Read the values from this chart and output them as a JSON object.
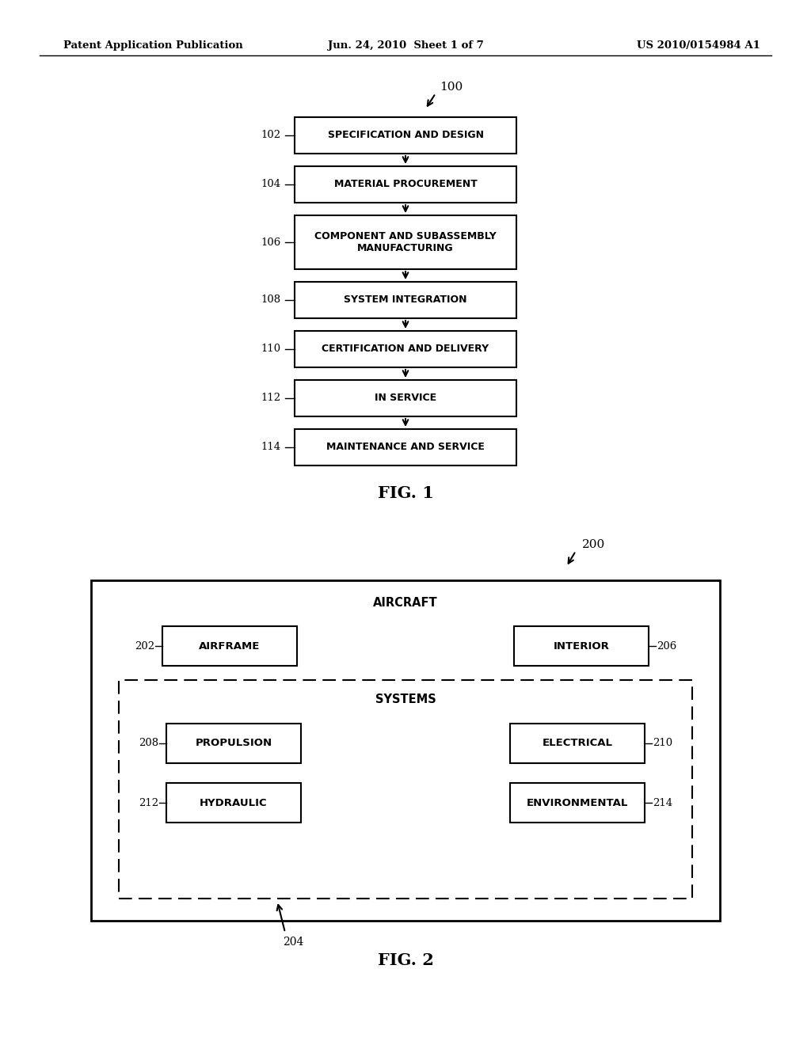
{
  "background_color": "#ffffff",
  "header_left": "Patent Application Publication",
  "header_center": "Jun. 24, 2010  Sheet 1 of 7",
  "header_right": "US 2010/0154984 A1",
  "fig1": {
    "label": "FIG. 1",
    "ref_label": "100",
    "boxes": [
      {
        "label": "102",
        "text": "SPECIFICATION AND DESIGN",
        "two_line": false
      },
      {
        "label": "104",
        "text": "MATERIAL PROCUREMENT",
        "two_line": false
      },
      {
        "label": "106",
        "text": "COMPONENT AND SUBASSEMBLY\nMANUFACTURING",
        "two_line": true
      },
      {
        "label": "108",
        "text": "SYSTEM INTEGRATION",
        "two_line": false
      },
      {
        "label": "110",
        "text": "CERTIFICATION AND DELIVERY",
        "two_line": false
      },
      {
        "label": "112",
        "text": "IN SERVICE",
        "two_line": false
      },
      {
        "label": "114",
        "text": "MAINTENANCE AND SERVICE",
        "two_line": false
      }
    ]
  },
  "fig2": {
    "label": "FIG. 2",
    "ref_label": "200",
    "outer_label": "AIRCRAFT",
    "inner_label": "SYSTEMS",
    "inner_label_204": "204",
    "boxes": [
      {
        "label": "202",
        "text": "AIRFRAME",
        "side": "left",
        "col": "left"
      },
      {
        "label": "206",
        "text": "INTERIOR",
        "side": "right",
        "col": "right"
      },
      {
        "label": "208",
        "text": "PROPULSION",
        "side": "left",
        "col": "left"
      },
      {
        "label": "210",
        "text": "ELECTRICAL",
        "side": "right",
        "col": "right"
      },
      {
        "label": "212",
        "text": "HYDRAULIC",
        "side": "left",
        "col": "left"
      },
      {
        "label": "214",
        "text": "ENVIRONMENTAL",
        "side": "right",
        "col": "right"
      }
    ]
  }
}
